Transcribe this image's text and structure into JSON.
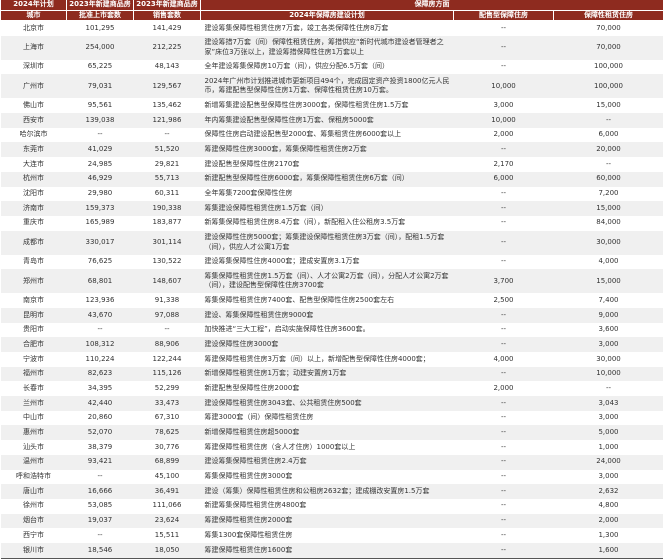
{
  "header": {
    "city_top": "2024年计划",
    "city_bottom": "城市",
    "approved_top": "2023年新建商品房",
    "approved_bottom": "批准上市套数",
    "sales_top": "2023年新建商品房",
    "sales_bottom": "销售套数",
    "group": "保障房方面",
    "plan": "2024年保障房建设计划",
    "allotment": "配售型保障住房",
    "rental": "保障性租赁住房"
  },
  "rows": [
    {
      "city": "北京市",
      "approved": "101,295",
      "sales": "141,429",
      "plan": "建设筹集保障性租赁住房7万套，竣工各类保障性住房8万套",
      "allotment": "--",
      "rental": "70,000"
    },
    {
      "city": "上海市",
      "approved": "254,000",
      "sales": "212,225",
      "plan": "建设筹措7万套（间）保障性租赁住房，筹措供应“新时代城市建设者管理者之家”床位3万张以上，建设筹措保障性住房1万套以上",
      "allotment": "--",
      "rental": "70,000",
      "double": true
    },
    {
      "city": "深圳市",
      "approved": "65,225",
      "sales": "48,143",
      "plan": "全年建设筹集保障房10万套（间），供应分配6.5万套（间）",
      "allotment": "--",
      "rental": "100,000"
    },
    {
      "city": "广州市",
      "approved": "79,031",
      "sales": "129,567",
      "plan": "2024年广州市计划推进城市更新项目494个，完成固定资产投资1800亿元人民币，筹建配售型保障性住房1万套、保障性租赁住房10万套。",
      "allotment": "10,000",
      "rental": "100,000",
      "double": true
    },
    {
      "city": "佛山市",
      "approved": "95,561",
      "sales": "135,462",
      "plan": "新增筹集建设配售型保障性住房3000套，保障性租赁住房1.5万套",
      "allotment": "3,000",
      "rental": "15,000"
    },
    {
      "city": "西安市",
      "approved": "139,038",
      "sales": "121,986",
      "plan": "年内筹集建设配售型保障性住房1万套、保租房5000套",
      "allotment": "10,000",
      "rental": "--"
    },
    {
      "city": "哈尔滨市",
      "approved": "--",
      "sales": "--",
      "plan": "保障性住房启动建设配售型2000套、筹集租赁住房6000套以上",
      "allotment": "2,000",
      "rental": "6,000"
    },
    {
      "city": "东莞市",
      "approved": "41,029",
      "sales": "51,520",
      "plan": "筹建保障性住房3000套，筹集保障性租赁住房2万套",
      "allotment": "--",
      "rental": "20,000"
    },
    {
      "city": "大连市",
      "approved": "24,985",
      "sales": "29,821",
      "plan": "建设配售型保障性住房2170套",
      "allotment": "2,170",
      "rental": "--"
    },
    {
      "city": "杭州市",
      "approved": "46,929",
      "sales": "55,713",
      "plan": "新建配售型保障性住房6000套，筹集保障性租赁住房6万套（间）",
      "allotment": "6,000",
      "rental": "60,000"
    },
    {
      "city": "沈阳市",
      "approved": "29,980",
      "sales": "60,311",
      "plan": "全年筹集7200套保障性住房",
      "allotment": "--",
      "rental": "7,200"
    },
    {
      "city": "济南市",
      "approved": "159,373",
      "sales": "190,338",
      "plan": "筹集建设保障性租赁住房1.5万套（间）",
      "allotment": "--",
      "rental": "15,000"
    },
    {
      "city": "重庆市",
      "approved": "165,989",
      "sales": "183,877",
      "plan": "新筹集保障性租赁住房8.4万套（间），新配租入住公租房3.5万套",
      "allotment": "--",
      "rental": "84,000"
    },
    {
      "city": "成都市",
      "approved": "330,017",
      "sales": "301,114",
      "plan": "建设保障性住房5000套；筹集建设保障性租赁住房3万套（间），配租1.5万套（间），供应人才公寓1万套",
      "allotment": "--",
      "rental": "30,000",
      "double": true
    },
    {
      "city": "青岛市",
      "approved": "76,625",
      "sales": "130,522",
      "plan": "建设筹集保障性住房4000套；建成安置房3.1万套",
      "allotment": "--",
      "rental": "4,000"
    },
    {
      "city": "郑州市",
      "approved": "68,801",
      "sales": "148,607",
      "plan": "筹集保障性租赁住房1.5万套（间）、人才公寓2万套（间），分配人才公寓2万套（间），建设配售型保障性住房3700套",
      "allotment": "3,700",
      "rental": "15,000",
      "double": true
    },
    {
      "city": "南京市",
      "approved": "123,936",
      "sales": "91,338",
      "plan": "筹集保障性租赁住房7400套、配售型保障性住房2500套左右",
      "allotment": "2,500",
      "rental": "7,400"
    },
    {
      "city": "昆明市",
      "approved": "43,670",
      "sales": "97,088",
      "plan": "建设、筹集保障性租赁住房9000套",
      "allotment": "--",
      "rental": "9,000"
    },
    {
      "city": "贵阳市",
      "approved": "--",
      "sales": "--",
      "plan": "加快推进“三大工程”，启动实施保障性住房3600套。",
      "allotment": "--",
      "rental": "3,600"
    },
    {
      "city": "合肥市",
      "approved": "108,312",
      "sales": "88,906",
      "plan": "建设保障性住房3000套",
      "allotment": "--",
      "rental": "3,000"
    },
    {
      "city": "宁波市",
      "approved": "110,224",
      "sales": "122,244",
      "plan": "筹建保障性租赁住房3万套（间）以上，新增配售型保障性住房4000套；",
      "allotment": "4,000",
      "rental": "30,000"
    },
    {
      "city": "福州市",
      "approved": "82,623",
      "sales": "115,126",
      "plan": "新增保障性租赁住房1万套；动建安置房1万套",
      "allotment": "--",
      "rental": "10,000"
    },
    {
      "city": "长春市",
      "approved": "34,395",
      "sales": "52,299",
      "plan": "新建配售型保障性住房2000套",
      "allotment": "2,000",
      "rental": "--"
    },
    {
      "city": "兰州市",
      "approved": "42,440",
      "sales": "33,473",
      "plan": "建设保障性租赁住房3043套、公共租赁住房500套",
      "allotment": "--",
      "rental": "3,043"
    },
    {
      "city": "中山市",
      "approved": "20,860",
      "sales": "67,310",
      "plan": "筹建3000套（间）保障性租赁住房",
      "allotment": "--",
      "rental": "3,000"
    },
    {
      "city": "惠州市",
      "approved": "52,070",
      "sales": "78,625",
      "plan": "新增保障性租赁住房超5000套",
      "allotment": "--",
      "rental": "5,000"
    },
    {
      "city": "汕头市",
      "approved": "38,379",
      "sales": "30,776",
      "plan": "筹建保障性租赁住房（含人才住房）1000套以上",
      "allotment": "--",
      "rental": "1,000"
    },
    {
      "city": "温州市",
      "approved": "93,421",
      "sales": "68,899",
      "plan": "建设筹集保障性租赁住房2.4万套",
      "allotment": "--",
      "rental": "24,000"
    },
    {
      "city": "呼和浩特市",
      "approved": "--",
      "sales": "45,100",
      "plan": "筹集保障性租赁住房3000套",
      "allotment": "--",
      "rental": "3,000"
    },
    {
      "city": "唐山市",
      "approved": "16,666",
      "sales": "36,491",
      "plan": "建设（筹集）保障性租赁住房和公租房2632套；建成棚改安置房1.5万套",
      "allotment": "--",
      "rental": "2,632"
    },
    {
      "city": "徐州市",
      "approved": "53,085",
      "sales": "111,066",
      "plan": "新建筹集保障性租赁住房4800套",
      "allotment": "--",
      "rental": "4,800"
    },
    {
      "city": "烟台市",
      "approved": "19,037",
      "sales": "23,624",
      "plan": "筹建保障性租赁住房2000套",
      "allotment": "--",
      "rental": "2,000"
    },
    {
      "city": "西宁市",
      "approved": "--",
      "sales": "15,511",
      "plan": "筹集1300套保障性租赁住房",
      "allotment": "--",
      "rental": "1,300"
    },
    {
      "city": "银川市",
      "approved": "18,546",
      "sales": "18,050",
      "plan": "筹建保障性租赁住房1600套",
      "allotment": "--",
      "rental": "1,600"
    }
  ]
}
